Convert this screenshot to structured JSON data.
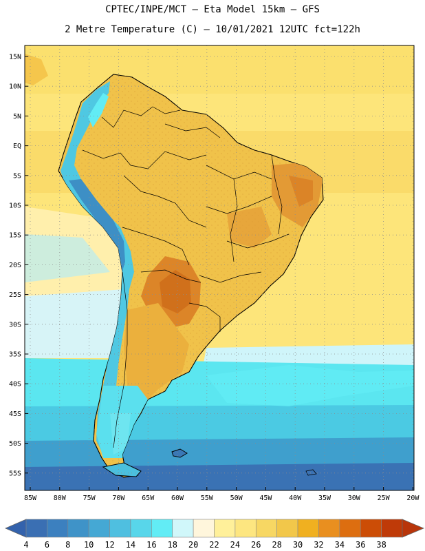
{
  "header": {
    "line1": "CPTEC/INPE/MCT —  Eta Model 15km — GFS",
    "line2": "2 Metre Temperature (C) — 10/01/2021 12UTC fct=122h"
  },
  "map": {
    "lat_labels": [
      "15N",
      "10N",
      "5N",
      "EQ",
      "5S",
      "10S",
      "15S",
      "20S",
      "25S",
      "30S",
      "35S",
      "40S",
      "45S",
      "50S",
      "55S"
    ],
    "lon_labels": [
      "85W",
      "80W",
      "75W",
      "70W",
      "65W",
      "60W",
      "55W",
      "50W",
      "45W",
      "40W",
      "35W",
      "30W",
      "25W",
      "20W"
    ]
  },
  "colorbar": {
    "labels": [
      "4",
      "6",
      "8",
      "10",
      "12",
      "14",
      "16",
      "18",
      "20",
      "22",
      "24",
      "26",
      "28",
      "30",
      "32",
      "34",
      "36",
      "38"
    ],
    "colors": [
      "#3a6fb3",
      "#3c80bf",
      "#3f93c8",
      "#45a8d4",
      "#4fbfe0",
      "#58d6ea",
      "#62ecf5",
      "#d0f7fa",
      "#fff6dc",
      "#fff09a",
      "#fde680",
      "#f7d763",
      "#f2c74a",
      "#f0b020",
      "#e98f1f",
      "#dd6e10",
      "#cc4d06",
      "#bf3a08"
    ],
    "low_color": "#3362ac",
    "high_color": "#b8350a"
  }
}
